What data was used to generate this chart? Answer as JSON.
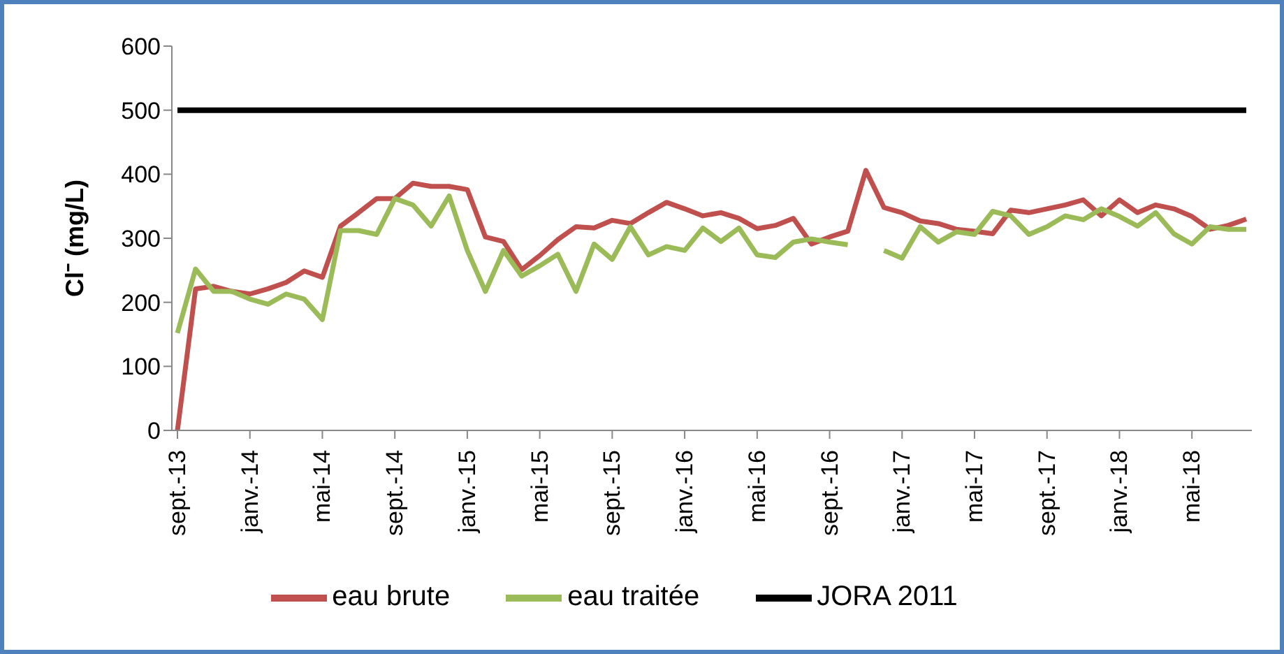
{
  "chart_data": {
    "type": "line",
    "ylabel": "Cl⁻ (mg/L)",
    "categories": [
      "sept.-13",
      null,
      null,
      null,
      "janv.-14",
      null,
      null,
      null,
      "mai-14",
      null,
      null,
      null,
      "sept.-14",
      null,
      null,
      null,
      "janv.-15",
      null,
      null,
      null,
      "mai-15",
      null,
      null,
      null,
      "sept.-15",
      null,
      null,
      null,
      "janv.-16",
      null,
      null,
      null,
      "mai-16",
      null,
      null,
      null,
      "sept.-16",
      null,
      null,
      null,
      "janv.-17",
      null,
      null,
      null,
      "mai-17",
      null,
      null,
      null,
      "sept.-17",
      null,
      null,
      null,
      "janv.-18",
      null,
      null,
      null,
      "mai-18",
      null,
      null,
      null
    ],
    "series": [
      {
        "name": "eau brute",
        "color": "#c0504d",
        "values": [
          0,
          221,
          225,
          217,
          213,
          221,
          231,
          249,
          239,
          319,
          340,
          362,
          362,
          386,
          381,
          381,
          376,
          302,
          295,
          251,
          273,
          298,
          318,
          316,
          328,
          323,
          340,
          356,
          346,
          335,
          340,
          331,
          315,
          320,
          331,
          291,
          302,
          311,
          406,
          348,
          340,
          327,
          323,
          314,
          311,
          307,
          344,
          340,
          346,
          352,
          360,
          335,
          360,
          340,
          352,
          346,
          334,
          314,
          320,
          330
        ]
      },
      {
        "name": "eau traitée",
        "color": "#9bbb59",
        "values": [
          152,
          252,
          217,
          217,
          205,
          197,
          213,
          205,
          173,
          312,
          312,
          306,
          362,
          352,
          319,
          366,
          281,
          217,
          281,
          241,
          257,
          275,
          217,
          291,
          267,
          318,
          274,
          287,
          281,
          316,
          295,
          316,
          274,
          270,
          294,
          299,
          294,
          290,
          null,
          281,
          269,
          318,
          294,
          310,
          306,
          342,
          335,
          306,
          318,
          335,
          329,
          346,
          334,
          319,
          340,
          307,
          291,
          318,
          314,
          314
        ]
      },
      {
        "name": "JORA 2011",
        "color": "#000000",
        "values": [
          500,
          500,
          500,
          500,
          500,
          500,
          500,
          500,
          500,
          500,
          500,
          500,
          500,
          500,
          500,
          500,
          500,
          500,
          500,
          500,
          500,
          500,
          500,
          500,
          500,
          500,
          500,
          500,
          500,
          500,
          500,
          500,
          500,
          500,
          500,
          500,
          500,
          500,
          500,
          500,
          500,
          500,
          500,
          500,
          500,
          500,
          500,
          500,
          500,
          500,
          500,
          500,
          500,
          500,
          500,
          500,
          500,
          500,
          500,
          500
        ]
      }
    ],
    "ylim": [
      0,
      600
    ],
    "yticks": [
      0,
      100,
      200,
      300,
      400,
      500,
      600
    ],
    "grid": false,
    "legend": "bottom",
    "marker": "none",
    "line_style": "solid"
  }
}
